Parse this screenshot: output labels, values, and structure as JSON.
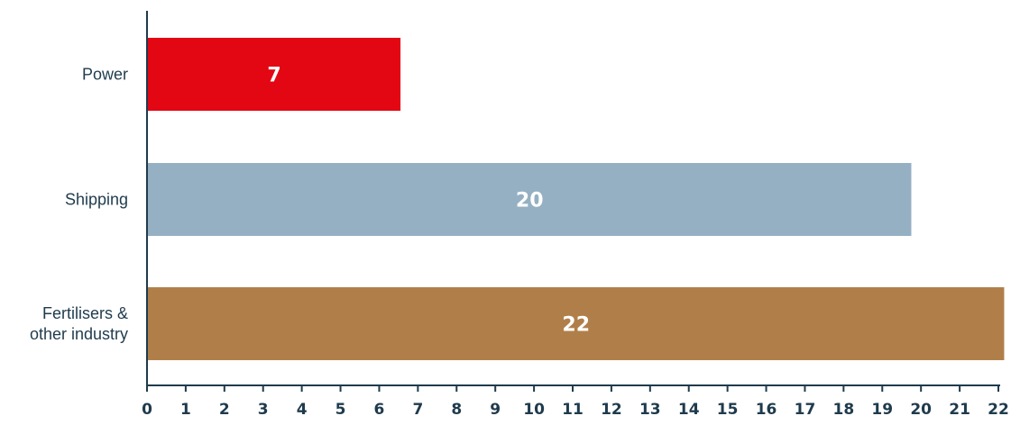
{
  "chart_data": {
    "type": "bar",
    "orientation": "horizontal",
    "categories": [
      [
        "Power"
      ],
      [
        "Shipping"
      ],
      [
        "Fertilisers &",
        "other industry"
      ]
    ],
    "values": [
      6.55,
      19.75,
      22.15
    ],
    "data_labels": [
      "7",
      "20",
      "22"
    ],
    "colors": [
      "#e30613",
      "#95b0c2",
      "#b07f49"
    ],
    "x_ticks": [
      "0",
      "1",
      "2",
      "3",
      "4",
      "5",
      "6",
      "7",
      "8",
      "9",
      "10",
      "11",
      "12",
      "13",
      "14",
      "15",
      "16",
      "17",
      "18",
      "19",
      "20",
      "21",
      "22"
    ],
    "xlim": [
      0,
      22
    ],
    "title": "",
    "xlabel": "",
    "ylabel": "",
    "grid": false,
    "legend": "none"
  }
}
